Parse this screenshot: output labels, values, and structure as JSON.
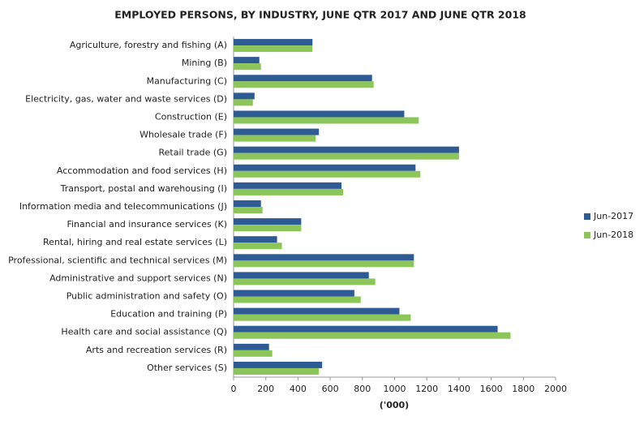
{
  "chart_data": {
    "type": "hbar",
    "title": "EMPLOYED PERSONS, BY INDUSTRY, JUNE QTR 2017 AND JUNE QTR 2018",
    "x_label": "('000)",
    "categories": [
      "Agriculture, forestry and fishing (A)",
      "Mining (B)",
      "Manufacturing (C)",
      "Electricity, gas, water and waste services (D)",
      "Construction (E)",
      "Wholesale trade (F)",
      "Retail trade (G)",
      "Accommodation and food services (H)",
      "Transport, postal and warehousing (I)",
      "Information media and telecommunications (J)",
      "Financial and insurance services (K)",
      "Rental, hiring and real estate services (L)",
      "Professional, scientific and technical services (M)",
      "Administrative and support services (N)",
      "Public administration and safety (O)",
      "Education and training (P)",
      "Health care and social assistance (Q)",
      "Arts and recreation services (R)",
      "Other services (S)"
    ],
    "series": [
      {
        "name": "Jun-2017",
        "color": "#2e5b94",
        "values": [
          490,
          160,
          860,
          130,
          1060,
          530,
          1400,
          1130,
          670,
          170,
          420,
          270,
          1120,
          840,
          750,
          1030,
          1640,
          220,
          550
        ]
      },
      {
        "name": "Jun-2018",
        "color": "#8cc65a",
        "values": [
          490,
          170,
          870,
          120,
          1150,
          510,
          1400,
          1160,
          680,
          180,
          420,
          300,
          1120,
          880,
          790,
          1100,
          1720,
          240,
          530
        ]
      }
    ],
    "xlim": [
      0,
      2000
    ],
    "xticks": [
      0,
      200,
      400,
      600,
      800,
      1000,
      1200,
      1400,
      1600,
      1800,
      2000
    ],
    "grid": false,
    "legend": "right"
  }
}
